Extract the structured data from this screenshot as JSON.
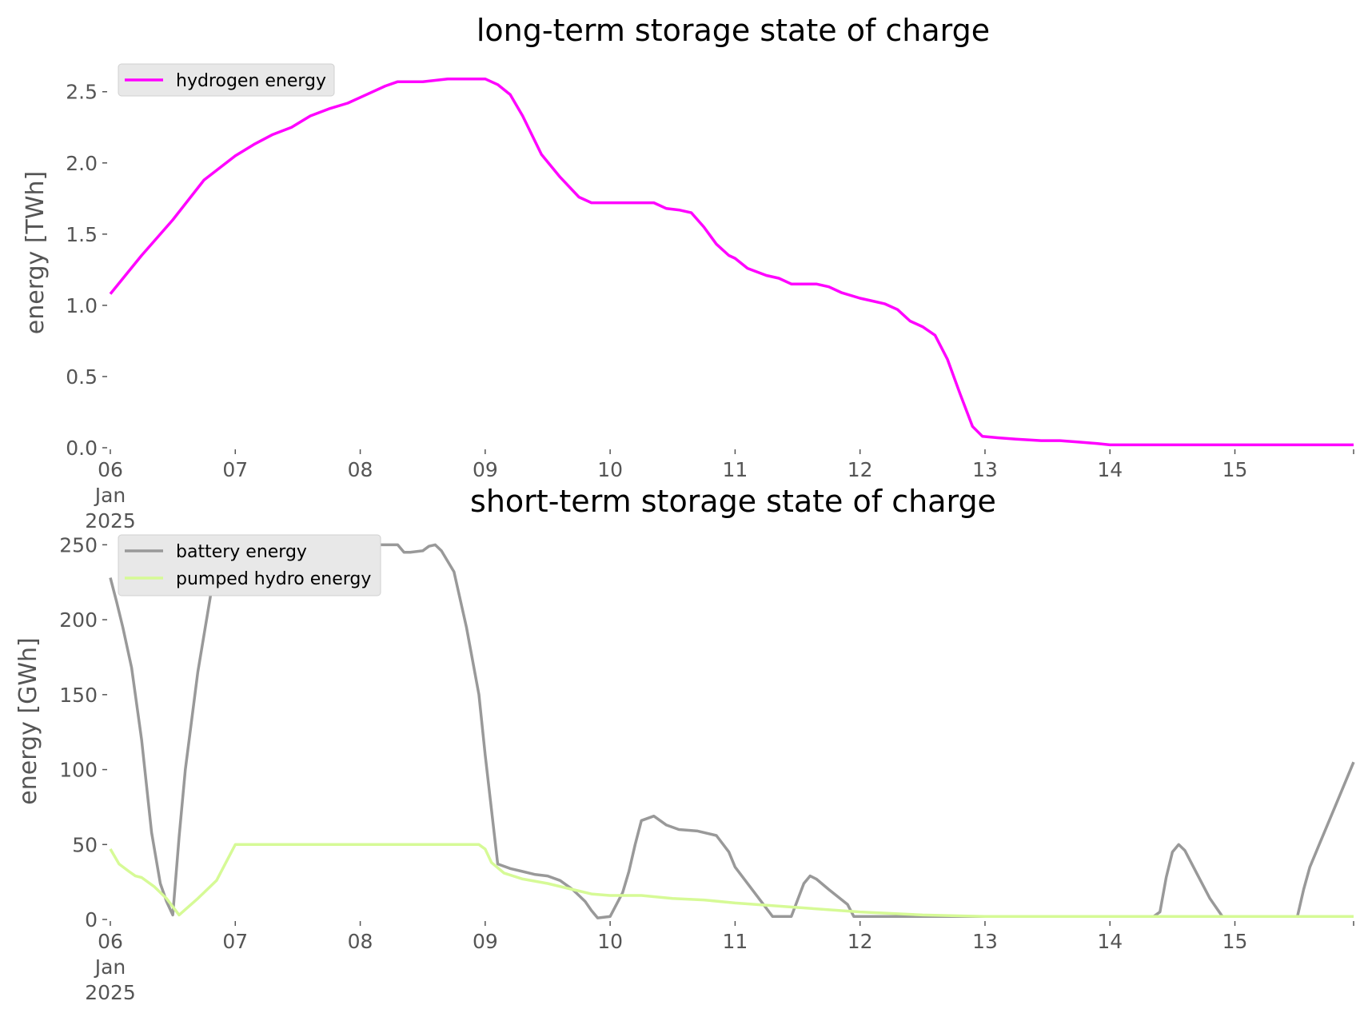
{
  "colors": {
    "hydrogen": "#ff00ff",
    "battery": "#999999",
    "pumped_hydro": "#d6fa96",
    "legend_bg": "#e8e8e8",
    "tick_text": "#555555"
  },
  "chart_data": [
    {
      "type": "line",
      "title": "long-term storage state of charge",
      "xlabel": "",
      "ylabel": "energy [TWh]",
      "xlim": [
        0,
        9.95
      ],
      "ylim": [
        0,
        2.65
      ],
      "x_ticks": [
        0,
        1,
        2,
        3,
        4,
        5,
        6,
        7,
        8,
        9
      ],
      "x_tick_labels": [
        [
          "06",
          "Jan",
          "2025"
        ],
        [
          "07"
        ],
        [
          "08"
        ],
        [
          "09"
        ],
        [
          "10"
        ],
        [
          "11"
        ],
        [
          "12"
        ],
        [
          "13"
        ],
        [
          "14"
        ],
        [
          "15"
        ]
      ],
      "y_ticks": [
        0,
        0.5,
        1.0,
        1.5,
        2.0,
        2.5
      ],
      "y_tick_labels": [
        "0.0",
        "0.5",
        "1.0",
        "1.5",
        "2.0",
        "2.5"
      ],
      "grid": false,
      "legend": "top-left",
      "series": [
        {
          "name": "hydrogen energy",
          "color": "#ff00ff",
          "x": [
            0,
            0.25,
            0.5,
            0.75,
            1.0,
            1.15,
            1.3,
            1.45,
            1.6,
            1.75,
            1.9,
            2.05,
            2.2,
            2.3,
            2.5,
            2.7,
            2.9,
            3.0,
            3.1,
            3.2,
            3.3,
            3.45,
            3.6,
            3.75,
            3.85,
            3.95,
            4.1,
            4.25,
            4.35,
            4.45,
            4.55,
            4.65,
            4.75,
            4.85,
            4.95,
            5.0,
            5.1,
            5.25,
            5.35,
            5.45,
            5.55,
            5.65,
            5.75,
            5.85,
            6.0,
            6.1,
            6.2,
            6.3,
            6.4,
            6.5,
            6.6,
            6.7,
            6.8,
            6.9,
            6.98,
            7.1,
            7.25,
            7.45,
            7.6,
            7.75,
            7.9,
            8.0,
            8.5,
            9.0,
            9.5,
            9.95
          ],
          "y": [
            1.08,
            1.35,
            1.6,
            1.88,
            2.05,
            2.13,
            2.2,
            2.25,
            2.33,
            2.38,
            2.42,
            2.48,
            2.54,
            2.57,
            2.57,
            2.59,
            2.59,
            2.59,
            2.55,
            2.48,
            2.33,
            2.06,
            1.9,
            1.76,
            1.72,
            1.72,
            1.72,
            1.72,
            1.72,
            1.68,
            1.67,
            1.65,
            1.55,
            1.43,
            1.35,
            1.33,
            1.26,
            1.21,
            1.19,
            1.15,
            1.15,
            1.15,
            1.13,
            1.09,
            1.05,
            1.03,
            1.01,
            0.97,
            0.89,
            0.85,
            0.79,
            0.62,
            0.38,
            0.15,
            0.08,
            0.07,
            0.06,
            0.05,
            0.05,
            0.04,
            0.03,
            0.02,
            0.02,
            0.02,
            0.02,
            0.02
          ]
        }
      ]
    },
    {
      "type": "line",
      "title": "short-term storage state of charge",
      "xlabel": "",
      "ylabel": "energy [GWh]",
      "xlim": [
        0,
        9.95
      ],
      "ylim": [
        0,
        255
      ],
      "x_ticks": [
        0,
        1,
        2,
        3,
        4,
        5,
        6,
        7,
        8,
        9
      ],
      "x_tick_labels": [
        [
          "06",
          "Jan",
          "2025"
        ],
        [
          "07"
        ],
        [
          "08"
        ],
        [
          "09"
        ],
        [
          "10"
        ],
        [
          "11"
        ],
        [
          "12"
        ],
        [
          "13"
        ],
        [
          "14"
        ],
        [
          "15"
        ]
      ],
      "y_ticks": [
        0,
        50,
        100,
        150,
        200,
        250
      ],
      "y_tick_labels": [
        "0",
        "50",
        "100",
        "150",
        "200",
        "250"
      ],
      "grid": false,
      "legend": "top-left",
      "series": [
        {
          "name": "battery energy",
          "color": "#999999",
          "x": [
            0,
            0.05,
            0.1,
            0.17,
            0.25,
            0.33,
            0.4,
            0.45,
            0.5,
            0.55,
            0.6,
            0.7,
            0.85,
            1.0,
            1.05,
            2.0,
            2.3,
            2.35,
            2.4,
            2.5,
            2.55,
            2.6,
            2.65,
            2.75,
            2.85,
            2.95,
            3.0,
            3.1,
            3.2,
            3.3,
            3.4,
            3.5,
            3.6,
            3.7,
            3.75,
            3.8,
            3.85,
            3.9,
            4.0,
            4.1,
            4.15,
            4.2,
            4.25,
            4.35,
            4.45,
            4.55,
            4.7,
            4.85,
            4.95,
            5.0,
            5.3,
            5.45,
            5.55,
            5.6,
            5.65,
            5.75,
            5.9,
            5.95,
            6.1,
            7.0,
            8.0,
            8.35,
            8.4,
            8.45,
            8.5,
            8.55,
            8.6,
            8.7,
            8.8,
            8.9,
            9.0,
            9.5,
            9.55,
            9.6,
            9.7,
            9.8,
            9.95
          ],
          "y": [
            228,
            212,
            195,
            168,
            120,
            58,
            24,
            12,
            3,
            55,
            100,
            165,
            240,
            250,
            250,
            250,
            250,
            245,
            245,
            246,
            249,
            250,
            246,
            232,
            195,
            150,
            110,
            37,
            34,
            32,
            30,
            29,
            26,
            20,
            16,
            12,
            6,
            1,
            2,
            18,
            32,
            50,
            66,
            69,
            63,
            60,
            59,
            56,
            45,
            35,
            2,
            2,
            24,
            29,
            27,
            20,
            10,
            2,
            2,
            2,
            2,
            2,
            5,
            28,
            45,
            50,
            46,
            30,
            14,
            2,
            2,
            2,
            20,
            35,
            55,
            75,
            105
          ]
        },
        {
          "name": "pumped hydro energy",
          "color": "#d6fa96",
          "x": [
            0,
            0.07,
            0.15,
            0.2,
            0.25,
            0.35,
            0.45,
            0.55,
            0.7,
            0.85,
            1.0,
            2.0,
            2.95,
            3.0,
            3.05,
            3.15,
            3.3,
            3.5,
            3.7,
            3.85,
            4.0,
            4.25,
            4.5,
            4.75,
            5.0,
            5.5,
            6.0,
            6.5,
            7.0,
            7.5,
            8.0,
            8.5,
            9.0,
            9.5,
            9.95
          ],
          "y": [
            47,
            37,
            32,
            29,
            28,
            22,
            14,
            3,
            14,
            26,
            50,
            50,
            50,
            47,
            38,
            31,
            27,
            24,
            20,
            17,
            16,
            16,
            14,
            13,
            11,
            8,
            5,
            3,
            2,
            2,
            2,
            2,
            2,
            2,
            2
          ]
        }
      ]
    }
  ]
}
